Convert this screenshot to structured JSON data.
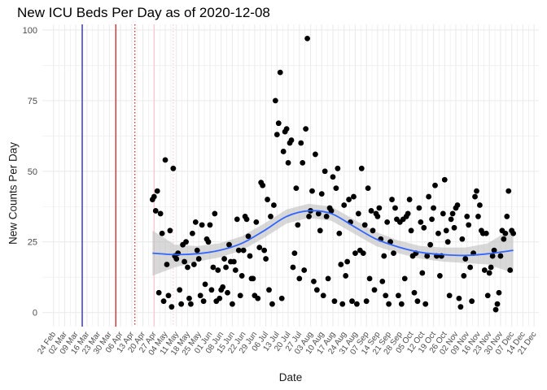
{
  "chart_data": {
    "type": "scatter",
    "title": "New ICU Beds Per Day as of 2020-12-08",
    "xlabel": "Date",
    "ylabel": "New Counts Per Day",
    "ylim": [
      -5,
      102
    ],
    "y_ticks": [
      0,
      25,
      50,
      75,
      100
    ],
    "xlim": [
      "2020-02-17",
      "2020-12-24"
    ],
    "x_ticks": [
      "24 Feb",
      "02 Mar",
      "09 Mar",
      "16 Mar",
      "23 Mar",
      "30 Mar",
      "06 Apr",
      "13 Apr",
      "20 Apr",
      "27 Apr",
      "04 May",
      "11 May",
      "18 May",
      "25 May",
      "01 Jun",
      "08 Jun",
      "15 Jun",
      "22 Jun",
      "29 Jun",
      "06 Jul",
      "13 Jul",
      "20 Jul",
      "27 Jul",
      "03 Aug",
      "10 Aug",
      "17 Aug",
      "24 Aug",
      "31 Aug",
      "07 Sep",
      "14 Sep",
      "21 Sep",
      "28 Sep",
      "05 Oct",
      "12 Oct",
      "19 Oct",
      "26 Oct",
      "02 Nov",
      "09 Nov",
      "16 Nov",
      "23 Nov",
      "30 Nov",
      "07 Dec",
      "14 Dec",
      "21 Dec"
    ],
    "grid": true,
    "reference_lines": [
      {
        "x": "2020-03-13",
        "color": "#00008b",
        "style": "solid"
      },
      {
        "x": "2020-04-03",
        "color": "#cc0000",
        "style": "solid"
      },
      {
        "x": "2020-04-15",
        "color": "#cc0000",
        "style": "dotted"
      },
      {
        "x": "2020-04-27",
        "color": "#ffc0cb",
        "style": "solid"
      },
      {
        "x": "2020-05-09",
        "color": "#ffc0cb",
        "style": "dotted"
      }
    ],
    "points": [
      [
        "2020-04-26",
        40
      ],
      [
        "2020-04-27",
        41
      ],
      [
        "2020-04-28",
        36
      ],
      [
        "2020-04-29",
        43
      ],
      [
        "2020-04-30",
        7
      ],
      [
        "2020-05-01",
        35
      ],
      [
        "2020-05-02",
        28
      ],
      [
        "2020-05-03",
        4
      ],
      [
        "2020-05-04",
        54
      ],
      [
        "2020-05-05",
        17
      ],
      [
        "2020-05-06",
        6
      ],
      [
        "2020-05-07",
        29
      ],
      [
        "2020-05-08",
        2
      ],
      [
        "2020-05-09",
        51
      ],
      [
        "2020-05-10",
        20
      ],
      [
        "2020-05-11",
        19
      ],
      [
        "2020-05-12",
        21
      ],
      [
        "2020-05-13",
        8
      ],
      [
        "2020-05-14",
        3
      ],
      [
        "2020-05-15",
        24
      ],
      [
        "2020-05-16",
        18
      ],
      [
        "2020-05-17",
        25
      ],
      [
        "2020-05-18",
        16
      ],
      [
        "2020-05-19",
        5
      ],
      [
        "2020-05-20",
        3
      ],
      [
        "2020-05-21",
        28
      ],
      [
        "2020-05-22",
        17
      ],
      [
        "2020-05-23",
        32
      ],
      [
        "2020-05-24",
        22
      ],
      [
        "2020-05-25",
        19
      ],
      [
        "2020-05-26",
        6
      ],
      [
        "2020-05-27",
        31
      ],
      [
        "2020-05-28",
        4
      ],
      [
        "2020-05-29",
        10
      ],
      [
        "2020-05-30",
        26
      ],
      [
        "2020-05-31",
        25
      ],
      [
        "2020-06-01",
        31
      ],
      [
        "2020-06-02",
        8
      ],
      [
        "2020-06-03",
        16
      ],
      [
        "2020-06-04",
        35
      ],
      [
        "2020-06-05",
        4
      ],
      [
        "2020-06-06",
        15
      ],
      [
        "2020-06-07",
        5
      ],
      [
        "2020-06-08",
        8
      ],
      [
        "2020-06-09",
        9
      ],
      [
        "2020-06-10",
        19
      ],
      [
        "2020-06-11",
        16
      ],
      [
        "2020-06-12",
        7
      ],
      [
        "2020-06-13",
        24
      ],
      [
        "2020-06-14",
        18
      ],
      [
        "2020-06-15",
        3
      ],
      [
        "2020-06-16",
        18
      ],
      [
        "2020-06-17",
        15
      ],
      [
        "2020-06-18",
        33
      ],
      [
        "2020-06-19",
        22
      ],
      [
        "2020-06-20",
        6
      ],
      [
        "2020-06-21",
        13
      ],
      [
        "2020-06-22",
        22
      ],
      [
        "2020-06-23",
        34
      ],
      [
        "2020-06-24",
        33
      ],
      [
        "2020-06-25",
        27
      ],
      [
        "2020-06-26",
        20
      ],
      [
        "2020-06-27",
        12
      ],
      [
        "2020-06-28",
        12
      ],
      [
        "2020-06-29",
        6
      ],
      [
        "2020-06-30",
        32
      ],
      [
        "2020-07-01",
        5
      ],
      [
        "2020-07-02",
        23
      ],
      [
        "2020-07-03",
        46
      ],
      [
        "2020-07-04",
        45
      ],
      [
        "2020-07-05",
        22
      ],
      [
        "2020-07-06",
        19
      ],
      [
        "2020-07-07",
        40
      ],
      [
        "2020-07-08",
        8
      ],
      [
        "2020-07-09",
        34
      ],
      [
        "2020-07-10",
        3
      ],
      [
        "2020-07-11",
        38
      ],
      [
        "2020-07-12",
        75
      ],
      [
        "2020-07-13",
        63
      ],
      [
        "2020-07-14",
        67
      ],
      [
        "2020-07-15",
        85
      ],
      [
        "2020-07-16",
        5
      ],
      [
        "2020-07-17",
        57
      ],
      [
        "2020-07-18",
        64
      ],
      [
        "2020-07-19",
        65
      ],
      [
        "2020-07-20",
        53
      ],
      [
        "2020-07-21",
        60
      ],
      [
        "2020-07-22",
        61
      ],
      [
        "2020-07-23",
        16
      ],
      [
        "2020-07-24",
        21
      ],
      [
        "2020-07-25",
        44
      ],
      [
        "2020-07-26",
        31
      ],
      [
        "2020-07-27",
        12
      ],
      [
        "2020-07-28",
        60
      ],
      [
        "2020-07-29",
        53
      ],
      [
        "2020-07-30",
        15
      ],
      [
        "2020-07-31",
        65
      ],
      [
        "2020-08-01",
        97
      ],
      [
        "2020-08-02",
        34
      ],
      [
        "2020-08-03",
        36
      ],
      [
        "2020-08-04",
        43
      ],
      [
        "2020-08-05",
        11
      ],
      [
        "2020-08-06",
        56
      ],
      [
        "2020-08-07",
        8
      ],
      [
        "2020-08-08",
        35
      ],
      [
        "2020-08-09",
        29
      ],
      [
        "2020-08-10",
        42
      ],
      [
        "2020-08-11",
        6
      ],
      [
        "2020-08-12",
        50
      ],
      [
        "2020-08-13",
        34
      ],
      [
        "2020-08-14",
        12
      ],
      [
        "2020-08-15",
        37
      ],
      [
        "2020-08-16",
        36
      ],
      [
        "2020-08-17",
        48
      ],
      [
        "2020-08-18",
        4
      ],
      [
        "2020-08-19",
        44
      ],
      [
        "2020-08-20",
        51
      ],
      [
        "2020-08-21",
        28
      ],
      [
        "2020-08-22",
        17
      ],
      [
        "2020-08-23",
        3
      ],
      [
        "2020-08-24",
        38
      ],
      [
        "2020-08-25",
        13
      ],
      [
        "2020-08-26",
        18
      ],
      [
        "2020-08-27",
        40
      ],
      [
        "2020-08-28",
        32
      ],
      [
        "2020-08-29",
        4
      ],
      [
        "2020-08-30",
        41
      ],
      [
        "2020-08-31",
        21
      ],
      [
        "2020-09-01",
        3
      ],
      [
        "2020-09-02",
        35
      ],
      [
        "2020-09-03",
        22
      ],
      [
        "2020-09-04",
        51
      ],
      [
        "2020-09-05",
        21
      ],
      [
        "2020-09-06",
        31
      ],
      [
        "2020-09-07",
        4
      ],
      [
        "2020-09-08",
        44
      ],
      [
        "2020-09-09",
        12
      ],
      [
        "2020-09-10",
        36
      ],
      [
        "2020-09-11",
        29
      ],
      [
        "2020-09-12",
        8
      ],
      [
        "2020-09-13",
        35
      ],
      [
        "2020-09-14",
        34
      ],
      [
        "2020-09-15",
        37
      ],
      [
        "2020-09-16",
        26
      ],
      [
        "2020-09-17",
        11
      ],
      [
        "2020-09-18",
        20
      ],
      [
        "2020-09-19",
        6
      ],
      [
        "2020-09-20",
        32
      ],
      [
        "2020-09-21",
        3
      ],
      [
        "2020-09-22",
        25
      ],
      [
        "2020-09-23",
        40
      ],
      [
        "2020-09-24",
        21
      ],
      [
        "2020-09-25",
        37
      ],
      [
        "2020-09-26",
        33
      ],
      [
        "2020-09-27",
        6
      ],
      [
        "2020-09-28",
        32
      ],
      [
        "2020-09-29",
        3
      ],
      [
        "2020-09-30",
        33
      ],
      [
        "2020-10-01",
        12
      ],
      [
        "2020-10-02",
        34
      ],
      [
        "2020-10-03",
        35
      ],
      [
        "2020-10-04",
        40
      ],
      [
        "2020-10-05",
        29
      ],
      [
        "2020-10-06",
        20
      ],
      [
        "2020-10-07",
        7
      ],
      [
        "2020-10-08",
        21
      ],
      [
        "2020-10-09",
        4
      ],
      [
        "2020-10-10",
        37
      ],
      [
        "2020-10-11",
        32
      ],
      [
        "2020-10-12",
        14
      ],
      [
        "2020-10-13",
        30
      ],
      [
        "2020-10-14",
        3
      ],
      [
        "2020-10-15",
        20
      ],
      [
        "2020-10-16",
        41
      ],
      [
        "2020-10-17",
        24
      ],
      [
        "2020-10-18",
        33
      ],
      [
        "2020-10-19",
        37
      ],
      [
        "2020-10-20",
        45
      ],
      [
        "2020-10-21",
        20
      ],
      [
        "2020-10-22",
        28
      ],
      [
        "2020-10-23",
        13
      ],
      [
        "2020-10-24",
        20
      ],
      [
        "2020-10-25",
        35
      ],
      [
        "2020-10-26",
        47
      ],
      [
        "2020-10-27",
        29
      ],
      [
        "2020-10-28",
        25
      ],
      [
        "2020-10-29",
        6
      ],
      [
        "2020-10-30",
        33
      ],
      [
        "2020-10-31",
        35
      ],
      [
        "2020-11-01",
        30
      ],
      [
        "2020-11-02",
        37
      ],
      [
        "2020-11-03",
        38
      ],
      [
        "2020-11-04",
        5
      ],
      [
        "2020-11-05",
        2
      ],
      [
        "2020-11-06",
        26
      ],
      [
        "2020-11-07",
        13
      ],
      [
        "2020-11-08",
        19
      ],
      [
        "2020-11-09",
        34
      ],
      [
        "2020-11-10",
        31
      ],
      [
        "2020-11-11",
        16
      ],
      [
        "2020-11-12",
        4
      ],
      [
        "2020-11-13",
        21
      ],
      [
        "2020-11-14",
        41
      ],
      [
        "2020-11-15",
        43
      ],
      [
        "2020-11-16",
        34
      ],
      [
        "2020-11-17",
        38
      ],
      [
        "2020-11-18",
        29
      ],
      [
        "2020-11-19",
        28
      ],
      [
        "2020-11-20",
        15
      ],
      [
        "2020-11-21",
        28
      ],
      [
        "2020-11-22",
        6
      ],
      [
        "2020-11-23",
        14
      ],
      [
        "2020-11-24",
        16
      ],
      [
        "2020-11-25",
        20
      ],
      [
        "2020-11-26",
        22
      ],
      [
        "2020-11-27",
        1
      ],
      [
        "2020-11-28",
        3
      ],
      [
        "2020-11-29",
        7
      ],
      [
        "2020-11-30",
        20
      ],
      [
        "2020-12-01",
        29
      ],
      [
        "2020-12-02",
        26
      ],
      [
        "2020-12-03",
        28
      ],
      [
        "2020-12-04",
        34
      ],
      [
        "2020-12-05",
        43
      ],
      [
        "2020-12-06",
        15
      ],
      [
        "2020-12-07",
        29
      ],
      [
        "2020-12-08",
        28
      ]
    ],
    "smooth": [
      [
        "2020-04-26",
        21
      ],
      [
        "2020-05-10",
        20.5
      ],
      [
        "2020-05-24",
        20.8
      ],
      [
        "2020-06-07",
        22
      ],
      [
        "2020-06-21",
        24.5
      ],
      [
        "2020-07-05",
        29
      ],
      [
        "2020-07-19",
        34
      ],
      [
        "2020-08-02",
        36
      ],
      [
        "2020-08-16",
        35
      ],
      [
        "2020-08-30",
        30.5
      ],
      [
        "2020-09-13",
        26
      ],
      [
        "2020-09-27",
        23.2
      ],
      [
        "2020-10-11",
        21.3
      ],
      [
        "2020-10-25",
        20.5
      ],
      [
        "2020-11-08",
        20.2
      ],
      [
        "2020-11-22",
        20.8
      ],
      [
        "2020-12-08",
        22
      ]
    ],
    "smooth_band": [
      [
        13,
        29
      ],
      [
        16,
        24
      ],
      [
        18,
        23.5
      ],
      [
        19.5,
        24.5
      ],
      [
        22,
        27
      ],
      [
        26.5,
        31.5
      ],
      [
        31.5,
        36.5
      ],
      [
        33.5,
        38.5
      ],
      [
        32.5,
        37.5
      ],
      [
        28,
        33
      ],
      [
        23.5,
        28.5
      ],
      [
        21,
        25.5
      ],
      [
        19,
        23.5
      ],
      [
        18,
        23
      ],
      [
        17.5,
        23
      ],
      [
        17,
        24.5
      ],
      [
        14,
        30
      ]
    ],
    "colors": {
      "points": "#000000",
      "smooth": "#3366ff",
      "band": "#bebebe",
      "grid": "#ebebeb"
    }
  }
}
